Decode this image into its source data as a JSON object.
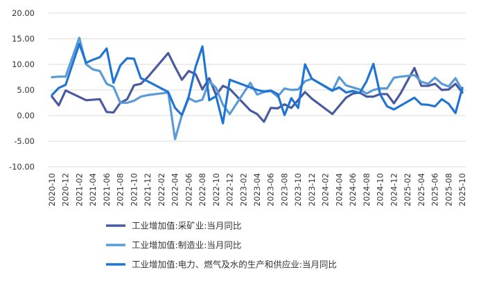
{
  "chart_data": {
    "type": "line",
    "title": "",
    "xlabel": "",
    "ylabel": "",
    "ylim": [
      -10,
      20
    ],
    "yticks": [
      "20.00",
      "15.00",
      "10.00",
      "5.00",
      "0.00",
      "-5.00",
      "-10.00"
    ],
    "ytick_values": [
      20,
      15,
      10,
      5,
      0,
      -5,
      -10
    ],
    "grid": "horizontal",
    "legend_position": "bottom-left",
    "x": [
      "2020-10",
      "2020-11",
      "2020-12",
      "2021-01",
      "2021-02",
      "2021-03",
      "2021-04",
      "2021-05",
      "2021-06",
      "2021-07",
      "2021-08",
      "2021-09",
      "2021-10",
      "2021-11",
      "2021-12",
      "2022-01",
      "2022-02",
      "2022-03",
      "2022-04",
      "2022-05",
      "2022-06",
      "2022-07",
      "2022-08",
      "2022-09",
      "2022-10",
      "2022-11",
      "2022-12",
      "2023-01",
      "2023-02",
      "2023-03",
      "2023-04",
      "2023-05",
      "2023-06",
      "2023-07",
      "2023-08",
      "2023-09",
      "2023-10",
      "2023-11",
      "2023-12",
      "2024-01",
      "2024-02",
      "2024-03",
      "2024-04",
      "2024-05",
      "2024-06",
      "2024-07",
      "2024-08",
      "2024-09",
      "2024-10",
      "2024-11",
      "2024-12",
      "2025-01",
      "2025-02",
      "2025-03",
      "2025-04",
      "2025-05",
      "2025-06",
      "2025-07",
      "2025-08",
      "2025-09",
      "2025-10"
    ],
    "xticks": [
      "2020-10",
      "2020-12",
      "2021-02",
      "2021-04",
      "2021-06",
      "2021-08",
      "2021-10",
      "2021-12",
      "2022-02",
      "2022-04",
      "2022-06",
      "2022-08",
      "2022-10",
      "2022-12",
      "2023-02",
      "2023-04",
      "2023-06",
      "2023-08",
      "2023-10",
      "2023-12",
      "2024-02",
      "2024-04",
      "2024-06",
      "2024-08",
      "2024-10",
      "2024-12",
      "2025-02",
      "2025-04",
      "2025-06",
      "2025-08",
      "2025-10"
    ],
    "series": [
      {
        "name": "工业增加值:采矿业:当月同比",
        "color": "#4a5aa0",
        "values": [
          3.7,
          2.0,
          4.9,
          null,
          null,
          3.0,
          3.1,
          3.2,
          0.7,
          0.6,
          2.5,
          3.2,
          5.9,
          6.2,
          7.5,
          null,
          null,
          12.2,
          9.5,
          7.0,
          8.7,
          8.1,
          5.1,
          7.3,
          4.0,
          5.8,
          5.2,
          null,
          null,
          1.0,
          0.3,
          -1.2,
          1.5,
          1.4,
          2.2,
          1.5,
          null,
          4.6,
          3.3,
          null,
          null,
          0.3,
          null,
          3.5,
          4.3,
          4.5,
          3.7,
          3.7,
          4.2,
          4.2,
          2.4,
          4.4,
          null,
          9.3,
          5.8,
          5.8,
          6.2,
          5.0,
          5.1,
          6.2,
          4.5
        ]
      },
      {
        "name": "工业增加值:制造业:当月同比",
        "color": "#5b9bd5",
        "values": [
          7.5,
          7.6,
          7.6,
          null,
          15.2,
          10.0,
          9.0,
          8.7,
          6.2,
          5.6,
          2.5,
          2.5,
          2.9,
          3.7,
          4.0,
          null,
          null,
          4.5,
          -4.6,
          0.1,
          3.4,
          2.7,
          3.1,
          6.7,
          5.4,
          2.1,
          0.3,
          null,
          null,
          6.4,
          4.1,
          4.6,
          4.8,
          3.7,
          5.3,
          5.0,
          5.1,
          6.7,
          7.2,
          null,
          null,
          4.8,
          7.5,
          5.9,
          5.5,
          5.1,
          4.3,
          5.0,
          5.3,
          5.3,
          7.4,
          7.6,
          null,
          7.9,
          6.6,
          6.2,
          7.4,
          6.2,
          5.7,
          7.3,
          4.9
        ]
      },
      {
        "name": "工业增加值:电力、燃气及水的生产和供应业:当月同比",
        "color": "#1f74d4",
        "values": [
          4.0,
          5.4,
          6.0,
          null,
          14.0,
          10.3,
          10.9,
          11.4,
          13.1,
          6.4,
          9.8,
          11.2,
          11.1,
          7.3,
          6.7,
          null,
          null,
          4.6,
          1.5,
          0.1,
          3.7,
          9.5,
          13.5,
          3.0,
          3.8,
          -1.5,
          7.0,
          null,
          null,
          null,
          5.0,
          4.7,
          4.9,
          4.2,
          0.1,
          3.4,
          1.5,
          10.0,
          7.2,
          null,
          null,
          4.9,
          5.5,
          4.5,
          4.8,
          4.4,
          6.7,
          10.1,
          4.1,
          1.8,
          1.2,
          null,
          null,
          3.5,
          2.2,
          2.1,
          1.8,
          3.2,
          2.3,
          0.5,
          5.4
        ]
      }
    ]
  }
}
